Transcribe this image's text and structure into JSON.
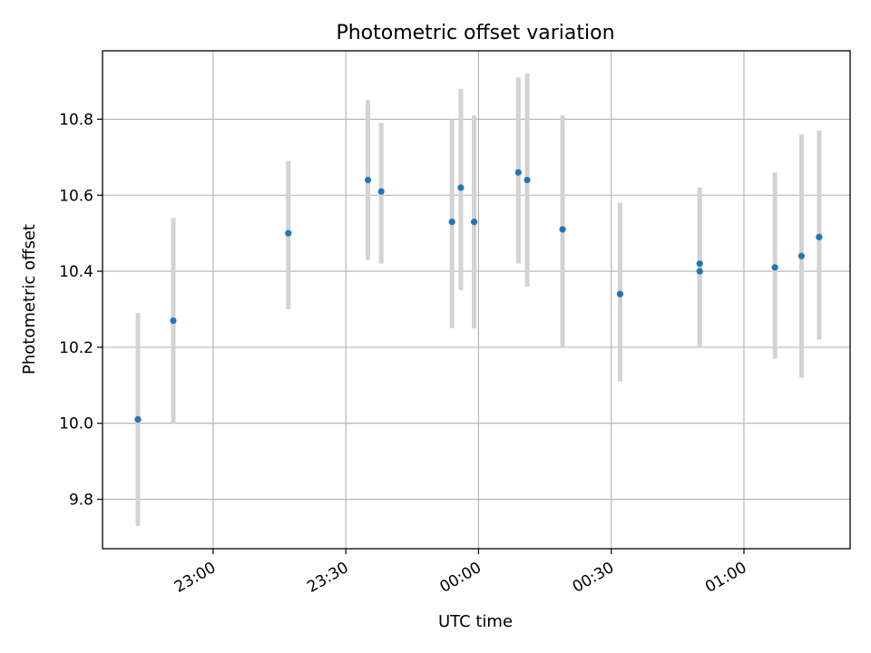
{
  "chart_data": {
    "type": "scatter",
    "title": "Photometric offset variation",
    "xlabel": "UTC time",
    "ylabel": "Photometric offset",
    "x_ticks": [
      "23:00",
      "23:30",
      "00:00",
      "00:30",
      "01:00"
    ],
    "y_ticks": [
      "9.8",
      "10.0",
      "10.2",
      "10.4",
      "10.6",
      "10.8"
    ],
    "xlim": [
      "22:35",
      "01:24"
    ],
    "ylim": [
      9.67,
      10.98
    ],
    "grid": true,
    "marker_color": "#1f77b4",
    "errorbar_color": "#d3d3d3",
    "points": [
      {
        "x": "22:43",
        "y": 10.01,
        "ylow": 9.73,
        "yhigh": 10.29
      },
      {
        "x": "22:43",
        "y": 10.01,
        "ylow": 9.75,
        "yhigh": 10.26
      },
      {
        "x": "22:51",
        "y": 10.27,
        "ylow": 10.0,
        "yhigh": 10.54
      },
      {
        "x": "23:17",
        "y": 10.5,
        "ylow": 10.3,
        "yhigh": 10.69
      },
      {
        "x": "23:35",
        "y": 10.64,
        "ylow": 10.43,
        "yhigh": 10.85
      },
      {
        "x": "23:38",
        "y": 10.61,
        "ylow": 10.42,
        "yhigh": 10.79
      },
      {
        "x": "23:54",
        "y": 10.53,
        "ylow": 10.25,
        "yhigh": 10.8
      },
      {
        "x": "23:56",
        "y": 10.62,
        "ylow": 10.35,
        "yhigh": 10.88
      },
      {
        "x": "23:59",
        "y": 10.53,
        "ylow": 10.25,
        "yhigh": 10.81
      },
      {
        "x": "00:09",
        "y": 10.66,
        "ylow": 10.42,
        "yhigh": 10.91
      },
      {
        "x": "00:11",
        "y": 10.64,
        "ylow": 10.36,
        "yhigh": 10.92
      },
      {
        "x": "00:19",
        "y": 10.51,
        "ylow": 10.2,
        "yhigh": 10.81
      },
      {
        "x": "00:32",
        "y": 10.34,
        "ylow": 10.11,
        "yhigh": 10.58
      },
      {
        "x": "00:50",
        "y": 10.4,
        "ylow": 10.2,
        "yhigh": 10.61
      },
      {
        "x": "00:50",
        "y": 10.42,
        "ylow": 10.21,
        "yhigh": 10.62
      },
      {
        "x": "01:07",
        "y": 10.41,
        "ylow": 10.17,
        "yhigh": 10.66
      },
      {
        "x": "01:13",
        "y": 10.44,
        "ylow": 10.12,
        "yhigh": 10.76
      },
      {
        "x": "01:17",
        "y": 10.49,
        "ylow": 10.22,
        "yhigh": 10.77
      }
    ]
  }
}
